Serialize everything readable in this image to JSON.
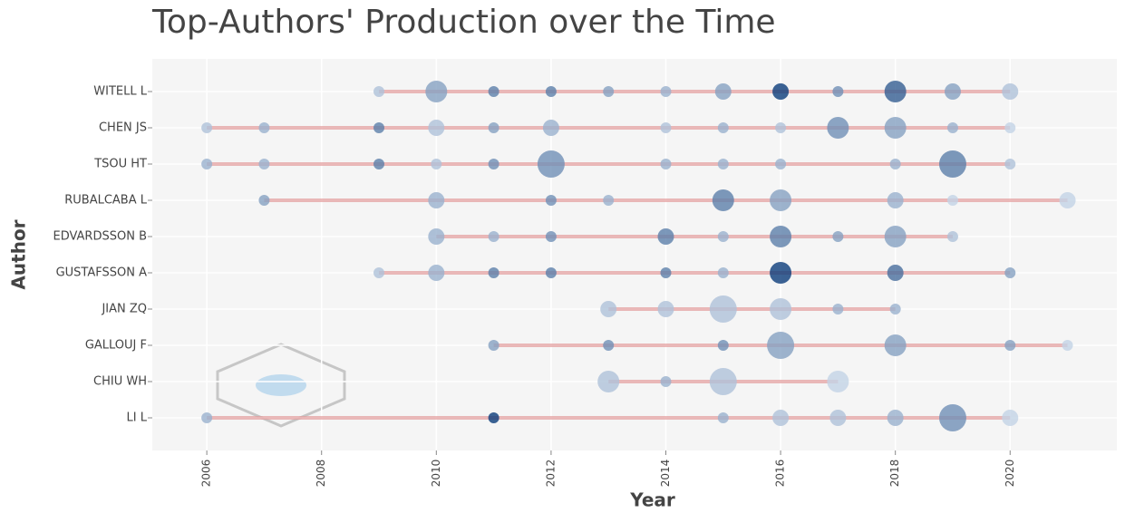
{
  "chart_data": {
    "type": "bubble",
    "title": "Top-Authors' Production over the Time",
    "x_label": "Year",
    "y_label": "Author",
    "xlim": [
      2005.05,
      2021.86
    ],
    "xticks": [
      2006,
      2008,
      2010,
      2012,
      2014,
      2016,
      2018,
      2020
    ],
    "grid": true,
    "line_color": "#e29b9b",
    "color_low": "#c3d3e6",
    "color_high": "#0b3c7a",
    "series": [
      {
        "name": "WITELL L",
        "x": [
          2009,
          2010,
          2011,
          2012,
          2013,
          2014,
          2015,
          2016,
          2017,
          2018,
          2019,
          2020
        ],
        "sizes": [
          1,
          3,
          1,
          1,
          1,
          1,
          2,
          2,
          1,
          3,
          2,
          2
        ],
        "intensity": [
          2,
          4,
          6,
          6,
          4,
          3,
          4,
          10,
          5,
          8,
          4,
          2
        ]
      },
      {
        "name": "CHEN JS",
        "x": [
          2006,
          2007,
          2009,
          2010,
          2011,
          2012,
          2014,
          2015,
          2016,
          2017,
          2018,
          2019,
          2020
        ],
        "sizes": [
          1,
          1,
          1,
          2,
          1,
          2,
          1,
          1,
          1,
          3,
          3,
          1,
          1
        ],
        "intensity": [
          2,
          3,
          6,
          2,
          4,
          3,
          2,
          3,
          2,
          5,
          4,
          3,
          1
        ]
      },
      {
        "name": "TSOU HT",
        "x": [
          2006,
          2007,
          2009,
          2010,
          2011,
          2012,
          2014,
          2015,
          2016,
          2018,
          2019,
          2020
        ],
        "sizes": [
          1,
          1,
          1,
          1,
          1,
          4,
          1,
          1,
          1,
          1,
          4,
          1
        ],
        "intensity": [
          3,
          3,
          6,
          2,
          5,
          5,
          3,
          3,
          3,
          3,
          6,
          2
        ]
      },
      {
        "name": "RUBALCABA L",
        "x": [
          2007,
          2010,
          2012,
          2013,
          2015,
          2016,
          2018,
          2019,
          2021
        ],
        "sizes": [
          1,
          2,
          1,
          1,
          3,
          3,
          2,
          1,
          2
        ],
        "intensity": [
          4,
          3,
          5,
          3,
          6,
          4,
          3,
          1,
          1
        ]
      },
      {
        "name": "EDVARDSSON B",
        "x": [
          2010,
          2011,
          2012,
          2014,
          2015,
          2016,
          2017,
          2018,
          2019
        ],
        "sizes": [
          2,
          1,
          1,
          2,
          1,
          3,
          1,
          3,
          1
        ],
        "intensity": [
          3,
          3,
          5,
          6,
          3,
          6,
          4,
          4,
          2
        ]
      },
      {
        "name": "GUSTAFSSON A",
        "x": [
          2009,
          2010,
          2011,
          2012,
          2014,
          2015,
          2016,
          2018,
          2020
        ],
        "sizes": [
          1,
          2,
          1,
          1,
          1,
          1,
          3,
          2,
          1
        ],
        "intensity": [
          2,
          3,
          6,
          6,
          6,
          3,
          10,
          7,
          4
        ]
      },
      {
        "name": "JIAN ZQ",
        "x": [
          2013,
          2014,
          2015,
          2016,
          2017,
          2018
        ],
        "sizes": [
          2,
          2,
          4,
          3,
          1,
          1
        ],
        "intensity": [
          2,
          2,
          2,
          2,
          3,
          3
        ]
      },
      {
        "name": "GALLOUJ F",
        "x": [
          2011,
          2013,
          2015,
          2016,
          2018,
          2020,
          2021
        ],
        "sizes": [
          1,
          1,
          1,
          4,
          3,
          1,
          1
        ],
        "intensity": [
          4,
          5,
          5,
          4,
          4,
          4,
          1
        ]
      },
      {
        "name": "CHIU WH",
        "x": [
          2013,
          2014,
          2015,
          2017
        ],
        "sizes": [
          3,
          1,
          4,
          3
        ],
        "intensity": [
          2,
          3,
          2,
          1
        ]
      },
      {
        "name": "LI L",
        "x": [
          2006,
          2011,
          2015,
          2016,
          2017,
          2018,
          2019,
          2020
        ],
        "sizes": [
          1,
          1,
          1,
          2,
          2,
          2,
          4,
          2
        ],
        "intensity": [
          3,
          10,
          3,
          2,
          2,
          3,
          5,
          1
        ]
      }
    ]
  }
}
